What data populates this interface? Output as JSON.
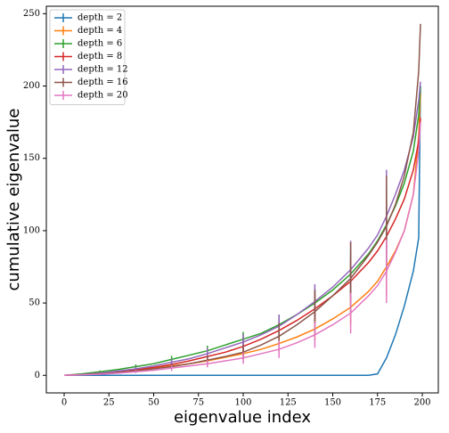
{
  "chart_data": {
    "type": "line",
    "x_label": "eigenvalue index",
    "y_label": "cumulative eigenvalue",
    "x": [
      0,
      10,
      20,
      30,
      40,
      50,
      60,
      70,
      80,
      90,
      100,
      110,
      120,
      130,
      140,
      150,
      160,
      170,
      175,
      180,
      185,
      190,
      195,
      198,
      199
    ],
    "xlim": [
      -9.95,
      208.95
    ],
    "xticks": [
      0,
      25,
      50,
      75,
      100,
      125,
      150,
      175,
      200
    ],
    "ylim": [
      -12.15,
      255.15
    ],
    "yticks": [
      0,
      50,
      100,
      150,
      200,
      250
    ],
    "legend": "upper left",
    "series": [
      {
        "name": "depth = 2",
        "color": "#1f77b4",
        "values": [
          0,
          0,
          0,
          0,
          0,
          0,
          0,
          0,
          0,
          0,
          0,
          0,
          0,
          0,
          0,
          0,
          0,
          0,
          1,
          12,
          28,
          48,
          72,
          95,
          200
        ],
        "errors": [
          null,
          null,
          null,
          null,
          null,
          null,
          null,
          null,
          null,
          null,
          null,
          null,
          null,
          null,
          null,
          null,
          null,
          null,
          null,
          null,
          null,
          null,
          null,
          null,
          null
        ]
      },
      {
        "name": "depth = 4",
        "color": "#ff7f0e",
        "values": [
          0,
          0.5,
          1.5,
          2.5,
          3.5,
          5,
          6.5,
          8,
          10,
          12.5,
          15,
          18,
          22,
          26.5,
          32,
          39,
          47,
          58,
          65,
          75,
          86,
          100,
          125,
          165,
          195
        ],
        "errors": [
          null,
          null,
          0.5,
          null,
          1,
          null,
          2,
          null,
          3,
          null,
          4,
          null,
          6,
          null,
          8,
          null,
          12,
          null,
          null,
          20,
          null,
          null,
          null,
          null,
          null
        ]
      },
      {
        "name": "depth = 6",
        "color": "#2ca02c",
        "values": [
          0,
          1,
          2.5,
          4,
          6,
          8,
          11,
          14,
          17,
          21,
          25,
          29,
          35,
          42,
          50,
          59,
          70,
          84,
          93,
          104,
          117,
          133,
          155,
          180,
          200
        ],
        "errors": [
          null,
          null,
          0.8,
          null,
          1.5,
          null,
          2.5,
          null,
          3.5,
          null,
          5,
          null,
          7,
          null,
          10,
          null,
          15,
          null,
          null,
          25,
          null,
          null,
          null,
          null,
          null
        ]
      },
      {
        "name": "depth = 8",
        "color": "#d62728",
        "values": [
          0,
          0.5,
          1.5,
          2.5,
          4,
          5.5,
          7.5,
          10,
          13,
          16,
          20,
          25,
          31,
          38,
          46,
          55,
          65,
          78,
          86,
          96,
          108,
          122,
          142,
          162,
          178
        ],
        "errors": [
          null,
          null,
          0.7,
          null,
          1.2,
          null,
          2,
          null,
          3,
          null,
          4.5,
          null,
          7,
          null,
          10,
          null,
          15,
          null,
          null,
          25,
          null,
          null,
          null,
          null,
          null
        ]
      },
      {
        "name": "depth = 12",
        "color": "#9467bd",
        "values": [
          0,
          0.5,
          1.5,
          3,
          4.5,
          6.5,
          9,
          11.5,
          15,
          19,
          23,
          28,
          34,
          42,
          51,
          61,
          73,
          88,
          97,
          110,
          125,
          142,
          165,
          190,
          203
        ],
        "errors": [
          null,
          null,
          0.7,
          null,
          1.5,
          null,
          2.5,
          null,
          4,
          null,
          5.5,
          null,
          8,
          null,
          12,
          null,
          20,
          null,
          null,
          32,
          null,
          null,
          null,
          null,
          null
        ]
      },
      {
        "name": "depth = 16",
        "color": "#8c564b",
        "values": [
          0,
          0.3,
          1,
          2,
          3,
          4.5,
          6,
          8,
          10.5,
          13,
          16,
          21,
          27,
          35,
          44,
          55,
          67,
          83,
          92,
          103,
          118,
          138,
          168,
          210,
          243
        ],
        "errors": [
          null,
          null,
          0.5,
          null,
          1,
          null,
          2,
          null,
          3,
          null,
          5,
          null,
          9,
          null,
          15,
          null,
          25,
          null,
          null,
          35,
          null,
          null,
          null,
          null,
          null
        ]
      },
      {
        "name": "depth = 20",
        "color": "#e377c2",
        "values": [
          0,
          0.3,
          0.8,
          1.5,
          2.5,
          3.5,
          5,
          6.5,
          8,
          10,
          12,
          15,
          18,
          22.5,
          28,
          35,
          43,
          55,
          62,
          72,
          85,
          100,
          125,
          155,
          175
        ],
        "errors": [
          null,
          null,
          0.4,
          null,
          1,
          null,
          2,
          null,
          2.5,
          null,
          4,
          null,
          6,
          null,
          9,
          null,
          14,
          null,
          null,
          22,
          null,
          null,
          null,
          null,
          null
        ]
      }
    ]
  }
}
